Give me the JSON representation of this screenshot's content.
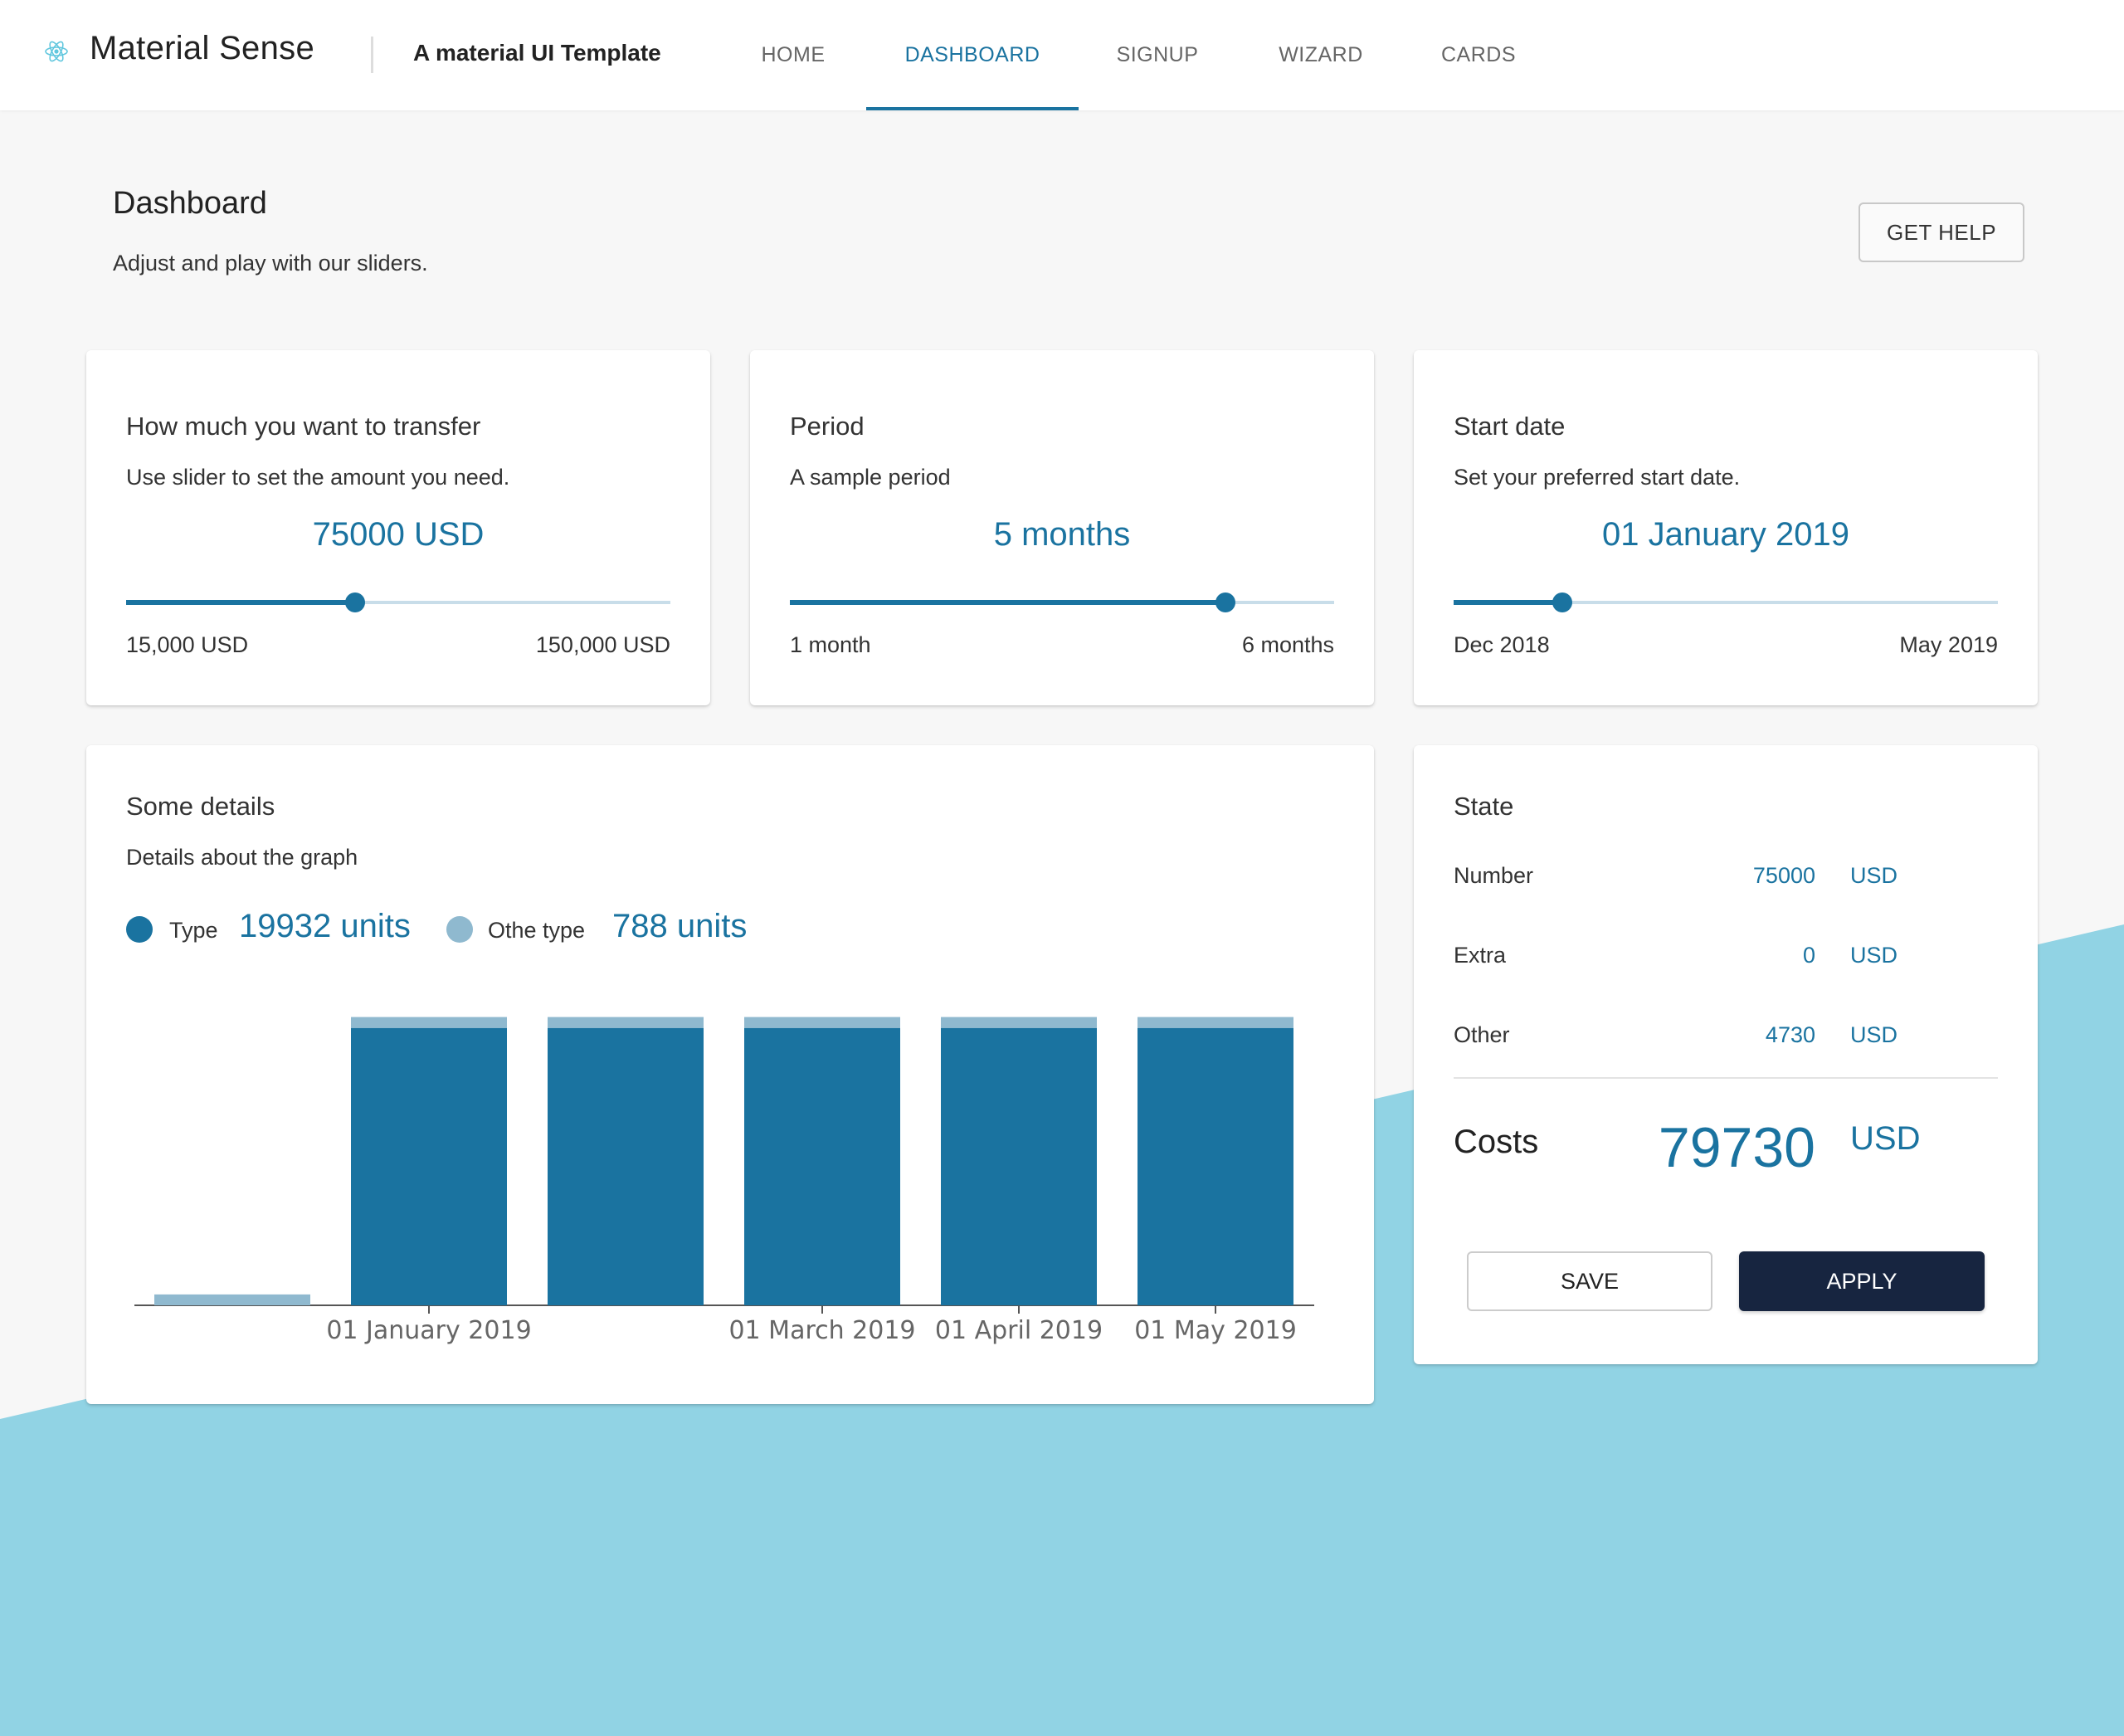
{
  "header": {
    "brand": "Material Sense",
    "tagline": "A material UI Template",
    "tabs": [
      {
        "label": "HOME",
        "active": false
      },
      {
        "label": "DASHBOARD",
        "active": true
      },
      {
        "label": "SIGNUP",
        "active": false
      },
      {
        "label": "WIZARD",
        "active": false
      },
      {
        "label": "CARDS",
        "active": false
      }
    ],
    "logo_icon": "react-atom-icon"
  },
  "page": {
    "title": "Dashboard",
    "subtitle": "Adjust and play with our sliders.",
    "help_button": "GET HELP"
  },
  "sliders": [
    {
      "title": "How much you want to transfer",
      "subtitle": "Use slider to set the amount you need.",
      "value_text": "75000 USD",
      "min_label": "15,000 USD",
      "max_label": "150,000 USD",
      "fraction": 0.42
    },
    {
      "title": "Period",
      "subtitle": "A sample period",
      "value_text": "5 months",
      "min_label": "1 month",
      "max_label": "6 months",
      "fraction": 0.8
    },
    {
      "title": "Start date",
      "subtitle": "Set your preferred start date.",
      "value_text": "01 January 2019",
      "min_label": "Dec 2018",
      "max_label": "May 2019",
      "fraction": 0.2
    }
  ],
  "details": {
    "title": "Some details",
    "subtitle": "Details about the graph",
    "legend": [
      {
        "label": "Type",
        "value": "19932 units",
        "color": "#1a73a0"
      },
      {
        "label": "Othe type",
        "value": "788 units",
        "color": "#8fb9cf"
      }
    ]
  },
  "chart_data": {
    "type": "bar",
    "stacked": true,
    "tick_labels": [
      "01 January 2019",
      "01 March 2019",
      "01 April 2019",
      "01 May 2019"
    ],
    "tick_bar_index": [
      1,
      3,
      4,
      5
    ],
    "series": [
      {
        "name": "Type",
        "values": [
          0,
          4000,
          4000,
          4000,
          4000,
          4000
        ],
        "color": "#1a73a0"
      },
      {
        "name": "Othe type",
        "values": [
          157,
          157,
          157,
          157,
          157,
          157
        ],
        "color": "#8fb9cf"
      }
    ],
    "ylim": [
      0,
      4200
    ],
    "grid": false,
    "legend_position": "top-left"
  },
  "state": {
    "title": "State",
    "rows": [
      {
        "label": "Number",
        "value": "75000",
        "unit": "USD"
      },
      {
        "label": "Extra",
        "value": "0",
        "unit": "USD"
      },
      {
        "label": "Other",
        "value": "4730",
        "unit": "USD"
      }
    ],
    "costs_label": "Costs",
    "costs_value": "79730",
    "costs_unit": "USD",
    "save_label": "SAVE",
    "apply_label": "APPLY"
  },
  "colors": {
    "accent": "#1a73a0",
    "background_wave": "#91d3e4",
    "apply_button": "#172540"
  }
}
